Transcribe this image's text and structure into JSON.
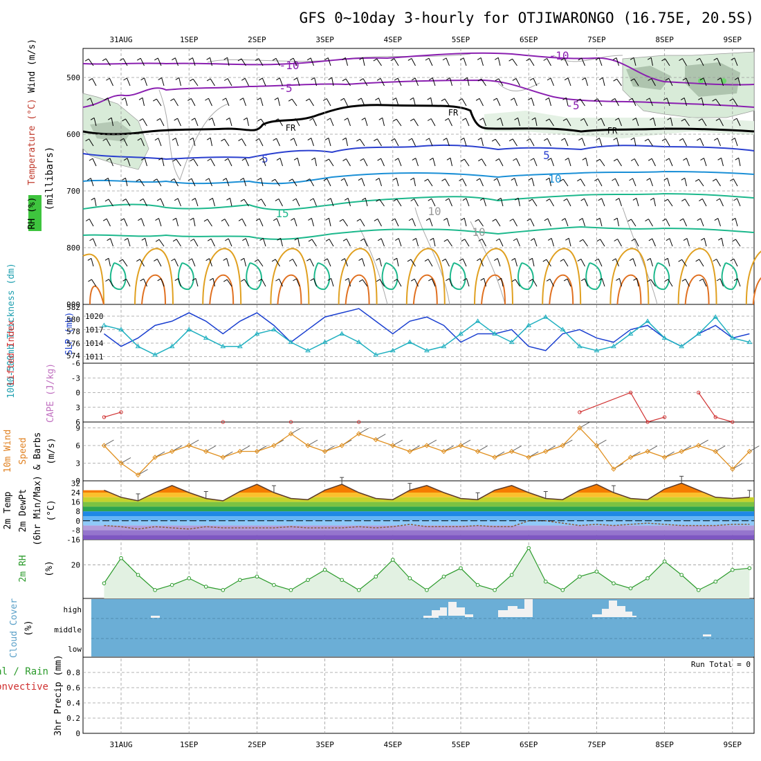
{
  "title": "GFS 0~10day 3-hourly for OTJIWARONGO (16.75E, 20.5S)",
  "dates": [
    "31AUG",
    "1SEP",
    "2SEP",
    "3SEP",
    "4SEP",
    "5SEP",
    "6SEP",
    "7SEP",
    "8SEP",
    "9SEP"
  ],
  "run_total": "Run Total = 0",
  "colors": {
    "temp_minus10": "#8a1fb0",
    "temp_minus5": "#8a1fb0",
    "temp_freeze": "#000000",
    "temp_5": "#2a3fcf",
    "temp_10": "#1a8fd6",
    "temp_15": "#1cb88c",
    "temp_20": "#e0a020",
    "temp_25": "#e07020",
    "rh_shade": "#cfe6cf",
    "slp": "#1a3fd0",
    "thickness": "#20b0c0",
    "lifted_index": "#d03030",
    "wind_speed": "#e09020",
    "rh2m": "#2a9a2a",
    "cloud_bg": "#6baed6"
  },
  "panels": {
    "upper_air": {
      "ylabels": [
        "Wind (m/s)",
        "Temperature (°C)",
        "RH (%)",
        "(millibars)"
      ],
      "yticks": [
        "500",
        "600",
        "700",
        "800",
        "900"
      ],
      "contour_labels": [
        "-10",
        "-10",
        "-5",
        "-5",
        "FR",
        "FR",
        "FR",
        "5",
        "5",
        "10",
        "15",
        "10",
        "10"
      ]
    },
    "slp_thickness": {
      "ylabel_left": "1000-500mb Thickness (dm)",
      "ylabel_right": "SLP (mb)",
      "yticks_left": [
        "582",
        "580",
        "578",
        "576",
        "574"
      ],
      "yticks_right": [
        "1020",
        "1017",
        "1014",
        "1011"
      ]
    },
    "stability": {
      "ylabel_li": "Lifted Index",
      "ylabel_cape": "CAPE (J/kg)",
      "yticks": [
        "-6",
        "-3",
        "0",
        "3",
        "6"
      ]
    },
    "wind10m": {
      "ylabel": [
        "10m Wind",
        "Speed",
        "& Barbs",
        "(m/s)"
      ],
      "yticks": [
        "9",
        "6",
        "3",
        "0"
      ]
    },
    "temp2m": {
      "ylabel": [
        "2m Temp",
        "2m DewPt",
        "(6hr Min/Max)",
        "(°C)"
      ],
      "yticks": [
        "32",
        "24",
        "16",
        "8",
        "0",
        "-8",
        "-16"
      ]
    },
    "rh2m": {
      "ylabel": [
        "2m RH",
        "(%)"
      ],
      "yticks": [
        "20"
      ]
    },
    "cloud": {
      "ylabel": [
        "Cloud Cover",
        "(%)"
      ],
      "levels": [
        "high",
        "middle",
        "low"
      ]
    },
    "precip": {
      "ylabel": [
        "Total / Rain",
        "Convective",
        "3hr Precip (mm)"
      ],
      "yticks": [
        "0.8",
        "0.6",
        "0.4",
        "0.2",
        "0"
      ]
    }
  },
  "chart_data": [
    {
      "type": "line",
      "title": "GFS 0~10day 3-hourly for OTJIWARONGO (16.75E, 20.5S)",
      "ylabel": "SLP (mb)",
      "x": [
        "30AUG18",
        "31AUG00",
        "31AUG06",
        "31AUG12",
        "31AUG18",
        "1SEP00",
        "1SEP06",
        "1SEP12",
        "1SEP18",
        "2SEP00",
        "2SEP06",
        "2SEP12",
        "2SEP18",
        "3SEP00",
        "3SEP06",
        "3SEP12",
        "3SEP18",
        "4SEP00",
        "4SEP06",
        "4SEP12",
        "4SEP18",
        "5SEP00",
        "5SEP06",
        "5SEP12",
        "5SEP18",
        "6SEP00",
        "6SEP06",
        "6SEP12",
        "6SEP18",
        "7SEP00",
        "7SEP06",
        "7SEP12",
        "7SEP18",
        "8SEP00",
        "8SEP06",
        "8SEP12",
        "8SEP18",
        "9SEP00",
        "9SEP06"
      ],
      "series": [
        {
          "values": [
            1016,
            1013,
            1015,
            1018,
            1019,
            1021,
            1019,
            1016,
            1019,
            1021,
            1018,
            1014,
            1017,
            1020,
            1021,
            1022,
            1019,
            1016,
            1019,
            1020,
            1018,
            1014,
            1016,
            1016,
            1017,
            1013,
            1012,
            1016,
            1017,
            1015,
            1014,
            1017,
            1018,
            1015,
            1013,
            1016,
            1018,
            1015,
            1016
          ]
        },
        {
          "values": [
            1018,
            1017,
            1013,
            1011,
            1013,
            1017,
            1015,
            1013,
            1013,
            1016,
            1017,
            1014,
            1012,
            1014,
            1016,
            1014,
            1011,
            1012,
            1014,
            1012,
            1013,
            1016,
            1019,
            1016,
            1014,
            1018,
            1020,
            1017,
            1013,
            1012,
            1013,
            1016,
            1019,
            1015,
            1013,
            1016,
            1020,
            1015,
            1014
          ]
        }
      ],
      "ylim": [
        1009,
        1023
      ]
    },
    {
      "type": "line",
      "ylabel": "Lifted Index",
      "x": [
        "30AUG18",
        "31AUG00",
        "1SEP12",
        "2SEP12",
        "3SEP12",
        "6SEP18",
        "7SEP12",
        "7SEP18",
        "8SEP00",
        "8SEP12",
        "8SEP18",
        "9SEP00"
      ],
      "series": [
        {
          "values": [
            5,
            4,
            6,
            6,
            6,
            4,
            0,
            6,
            5,
            0,
            5,
            6
          ]
        }
      ],
      "ylim": [
        -6,
        6
      ]
    },
    {
      "type": "line",
      "ylabel": "10m Wind Speed (m/s)",
      "x": [
        "30AUG18",
        "31AUG00",
        "31AUG06",
        "31AUG12",
        "31AUG18",
        "1SEP00",
        "1SEP06",
        "1SEP12",
        "1SEP18",
        "2SEP00",
        "2SEP06",
        "2SEP12",
        "2SEP18",
        "3SEP00",
        "3SEP06",
        "3SEP12",
        "3SEP18",
        "4SEP00",
        "4SEP06",
        "4SEP12",
        "4SEP18",
        "5SEP00",
        "5SEP06",
        "5SEP12",
        "5SEP18",
        "6SEP00",
        "6SEP06",
        "6SEP12",
        "6SEP18",
        "7SEP00",
        "7SEP06",
        "7SEP12",
        "7SEP18",
        "8SEP00",
        "8SEP06",
        "8SEP12",
        "8SEP18",
        "9SEP00",
        "9SEP06"
      ],
      "series": [
        {
          "values": [
            6,
            3,
            1,
            4,
            5,
            6,
            5,
            4,
            5,
            5,
            6,
            8,
            6,
            5,
            6,
            8,
            7,
            6,
            5,
            6,
            5,
            6,
            5,
            4,
            5,
            4,
            5,
            6,
            9,
            6,
            2,
            4,
            5,
            4,
            5,
            6,
            5,
            2,
            5
          ]
        }
      ],
      "ylim": [
        0,
        10
      ]
    },
    {
      "type": "line",
      "ylabel": "2m Temp (°C)",
      "x": [
        "30AUG18",
        "31AUG00",
        "31AUG06",
        "31AUG12",
        "31AUG18",
        "1SEP00",
        "1SEP06",
        "1SEP12",
        "1SEP18",
        "2SEP00",
        "2SEP06",
        "2SEP12",
        "2SEP18",
        "3SEP00",
        "3SEP06",
        "3SEP12",
        "3SEP18",
        "4SEP00",
        "4SEP06",
        "4SEP12",
        "4SEP18",
        "5SEP00",
        "5SEP06",
        "5SEP12",
        "5SEP18",
        "6SEP00",
        "6SEP06",
        "6SEP12",
        "6SEP18",
        "7SEP00",
        "7SEP06",
        "7SEP12",
        "7SEP18",
        "8SEP00",
        "8SEP06",
        "8SEP12",
        "8SEP18",
        "9SEP00",
        "9SEP06"
      ],
      "series": [
        {
          "values": [
            26,
            20,
            17,
            24,
            30,
            24,
            19,
            17,
            25,
            31,
            24,
            19,
            18,
            26,
            31,
            24,
            19,
            18,
            26,
            30,
            24,
            19,
            18,
            26,
            30,
            24,
            19,
            18,
            26,
            31,
            24,
            19,
            18,
            27,
            32,
            26,
            20,
            19,
            20
          ]
        },
        {
          "values": [
            -4,
            -5,
            -7,
            -5,
            -6,
            -7,
            -5,
            -6,
            -6,
            -6,
            -6,
            -5,
            -6,
            -6,
            -6,
            -5,
            -6,
            -5,
            -3,
            -5,
            -5,
            -5,
            -4,
            -5,
            -5,
            0,
            0,
            -2,
            -4,
            -3,
            -4,
            -3,
            -2,
            -3,
            -4,
            -4,
            -4,
            -3,
            -3
          ]
        }
      ],
      "ylim": [
        -16,
        34
      ]
    },
    {
      "type": "area",
      "ylabel": "2m RH (%)",
      "x": [
        "30AUG18",
        "31AUG00",
        "31AUG06",
        "31AUG12",
        "31AUG18",
        "1SEP00",
        "1SEP06",
        "1SEP12",
        "1SEP18",
        "2SEP00",
        "2SEP06",
        "2SEP12",
        "2SEP18",
        "3SEP00",
        "3SEP06",
        "3SEP12",
        "3SEP18",
        "4SEP00",
        "4SEP06",
        "4SEP12",
        "4SEP18",
        "5SEP00",
        "5SEP06",
        "5SEP12",
        "5SEP18",
        "6SEP00",
        "6SEP06",
        "6SEP12",
        "6SEP18",
        "7SEP00",
        "7SEP06",
        "7SEP12",
        "7SEP18",
        "8SEP00",
        "8SEP06",
        "8SEP12",
        "8SEP18",
        "9SEP00",
        "9SEP06"
      ],
      "series": [
        {
          "values": [
            9,
            24,
            14,
            5,
            8,
            12,
            7,
            5,
            11,
            13,
            8,
            5,
            11,
            17,
            11,
            5,
            13,
            23,
            12,
            5,
            13,
            18,
            8,
            5,
            14,
            30,
            10,
            5,
            13,
            16,
            9,
            6,
            12,
            22,
            14,
            5,
            10,
            17,
            18
          ]
        }
      ],
      "ylim": [
        0,
        35
      ]
    }
  ]
}
